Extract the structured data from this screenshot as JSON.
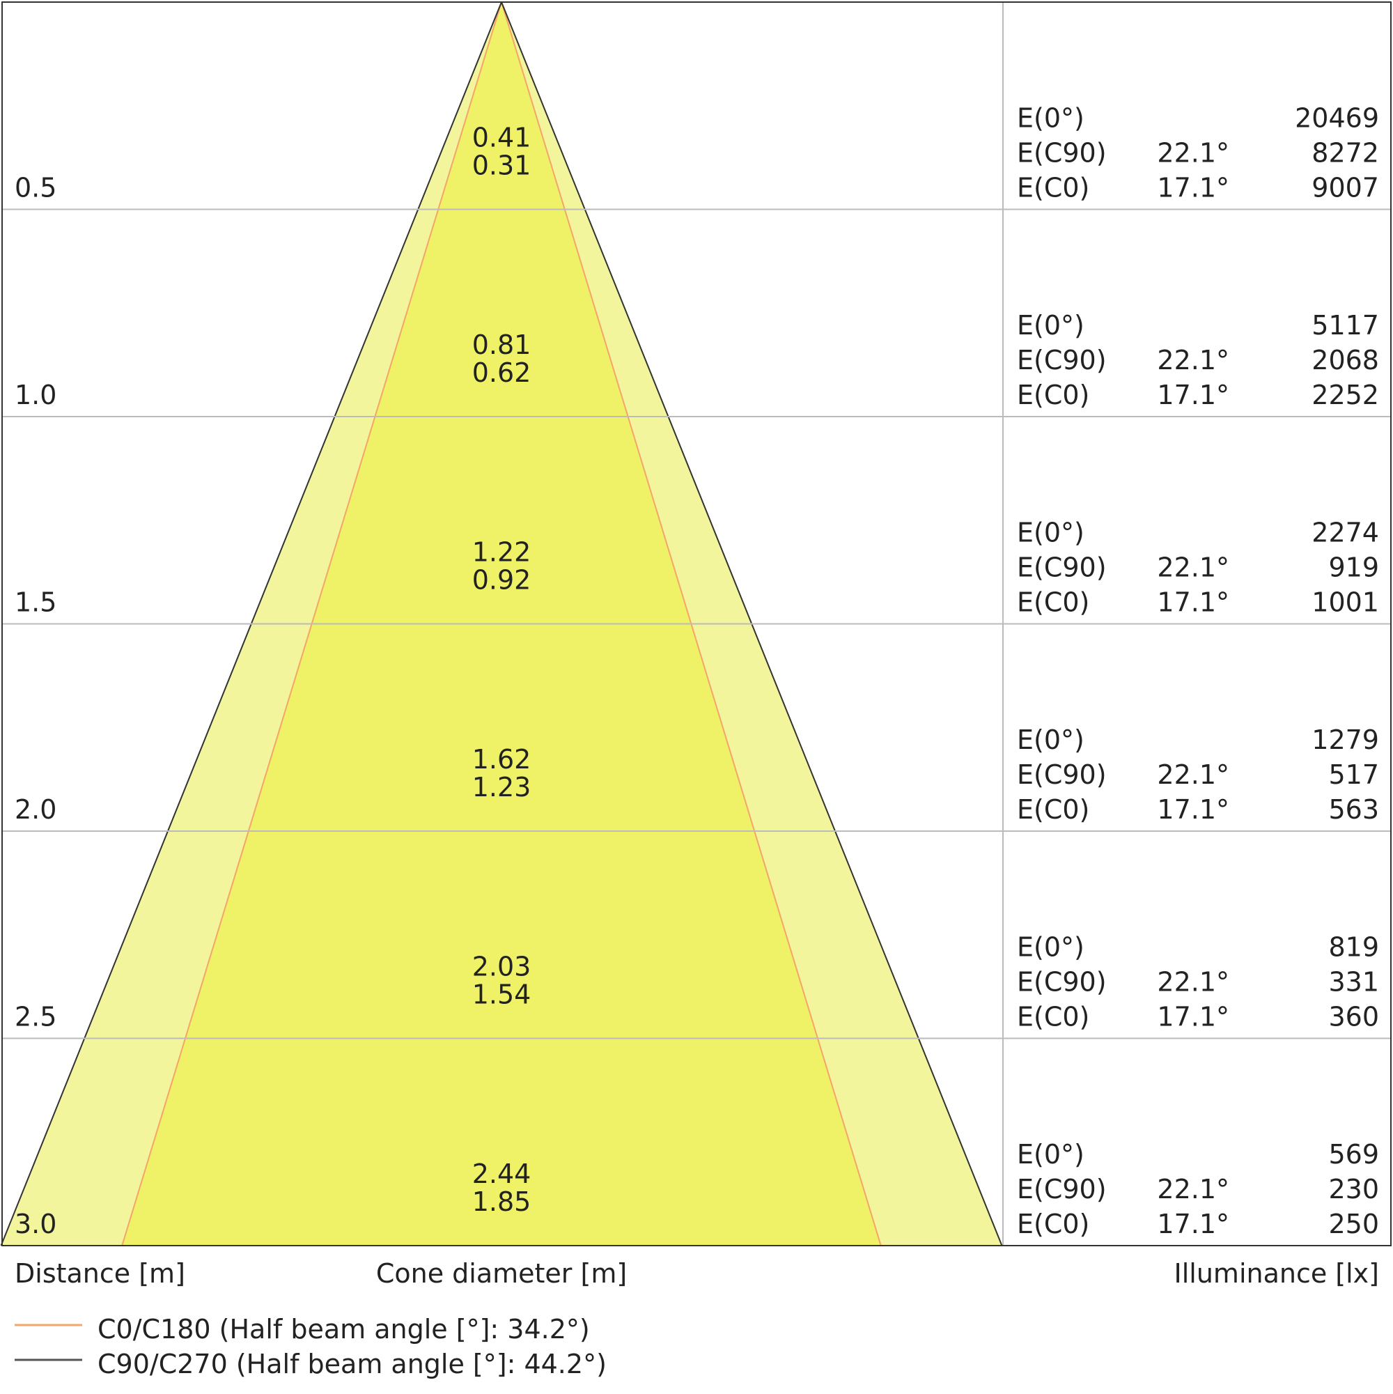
{
  "labels": {
    "distance_axis": "Distance [m]",
    "cone_axis": "Cone diameter [m]",
    "illuminance_axis": "Illuminance [lx]"
  },
  "legend": [
    {
      "label": "C0/C180 (Half beam angle [°]: 34.2°)",
      "color": "#f5a46a"
    },
    {
      "label": "C90/C270 (Half beam angle [°]: 44.2°)",
      "color": "#555555"
    }
  ],
  "colors": {
    "outer_cone": "#f2f59c",
    "inner_cone": "#eff267",
    "grid": "#bbbbbb",
    "border": "#333333",
    "text": "#222222"
  },
  "chart_data": {
    "type": "table",
    "distances": [
      "0.5",
      "1.0",
      "1.5",
      "2.0",
      "2.5",
      "3.0"
    ],
    "rows": [
      {
        "distance": "0.5",
        "cone_c90": "0.41",
        "cone_c0": "0.31",
        "e0_label": "E(0°)",
        "e0_value": "20469",
        "ec90_label": "E(C90)",
        "ec90_angle": "22.1°",
        "ec90_value": "8272",
        "ec0_label": "E(C0)",
        "ec0_angle": "17.1°",
        "ec0_value": "9007"
      },
      {
        "distance": "1.0",
        "cone_c90": "0.81",
        "cone_c0": "0.62",
        "e0_label": "E(0°)",
        "e0_value": "5117",
        "ec90_label": "E(C90)",
        "ec90_angle": "22.1°",
        "ec90_value": "2068",
        "ec0_label": "E(C0)",
        "ec0_angle": "17.1°",
        "ec0_value": "2252"
      },
      {
        "distance": "1.5",
        "cone_c90": "1.22",
        "cone_c0": "0.92",
        "e0_label": "E(0°)",
        "e0_value": "2274",
        "ec90_label": "E(C90)",
        "ec90_angle": "22.1°",
        "ec90_value": "919",
        "ec0_label": "E(C0)",
        "ec0_angle": "17.1°",
        "ec0_value": "1001"
      },
      {
        "distance": "2.0",
        "cone_c90": "1.62",
        "cone_c0": "1.23",
        "e0_label": "E(0°)",
        "e0_value": "1279",
        "ec90_label": "E(C90)",
        "ec90_angle": "22.1°",
        "ec90_value": "517",
        "ec0_label": "E(C0)",
        "ec0_angle": "17.1°",
        "ec0_value": "563"
      },
      {
        "distance": "2.5",
        "cone_c90": "2.03",
        "cone_c0": "1.54",
        "e0_label": "E(0°)",
        "e0_value": "819",
        "ec90_label": "E(C90)",
        "ec90_angle": "22.1°",
        "ec90_value": "331",
        "ec0_label": "E(C0)",
        "ec0_angle": "17.1°",
        "ec0_value": "360"
      },
      {
        "distance": "3.0",
        "cone_c90": "2.44",
        "cone_c0": "1.85",
        "e0_label": "E(0°)",
        "e0_value": "569",
        "ec90_label": "E(C90)",
        "ec90_angle": "22.1°",
        "ec90_value": "230",
        "ec0_label": "E(C0)",
        "ec0_angle": "17.1°",
        "ec0_value": "250"
      }
    ],
    "max_distance": 3.0,
    "max_cone_c90": 2.44,
    "max_cone_c0": 1.85
  }
}
